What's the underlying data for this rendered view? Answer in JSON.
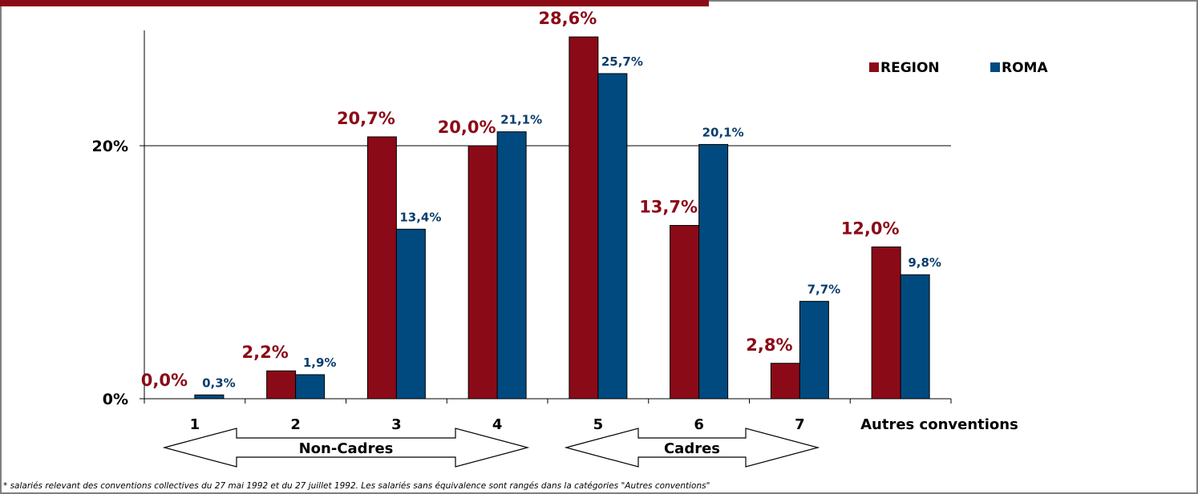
{
  "chart_data": {
    "type": "bar",
    "categories": [
      "1",
      "2",
      "3",
      "4",
      "5",
      "6",
      "7",
      "Autres conventions"
    ],
    "series": [
      {
        "name": "REGION",
        "color": "#8b0a17",
        "values": [
          0.0,
          2.2,
          20.7,
          20.0,
          28.6,
          13.7,
          2.8,
          12.0
        ],
        "labels": [
          "0,0%",
          "2,2%",
          "20,7%",
          "20,0%",
          "28,6%",
          "13,7%",
          "2,8%",
          "12,0%"
        ]
      },
      {
        "name": "ROMA",
        "color": "#004a7f",
        "values": [
          0.3,
          1.9,
          13.4,
          21.1,
          25.7,
          20.1,
          7.7,
          9.8
        ],
        "labels": [
          "0,3%",
          "1,9%",
          "13,4%",
          "21,1%",
          "25,7%",
          "20,1%",
          "7,7%",
          "9,8%"
        ]
      }
    ],
    "y_ticks": [
      {
        "value": 0,
        "label": "0%"
      },
      {
        "value": 20,
        "label": "20%"
      }
    ],
    "ylim": [
      0,
      29
    ],
    "gridlines": [
      20
    ],
    "legend_position": "top-right",
    "group_arrows": [
      {
        "label": "Non-Cadres",
        "from": "1",
        "to": "4"
      },
      {
        "label": "Cadres",
        "from": "5",
        "to": "7"
      }
    ],
    "footnote": "* salariés relevant des conventions collectives du 27 mai 1992 et du 27 juillet 1992. Les salariés sans équivalence sont rangés dans la catégories \"Autres conventions\""
  }
}
